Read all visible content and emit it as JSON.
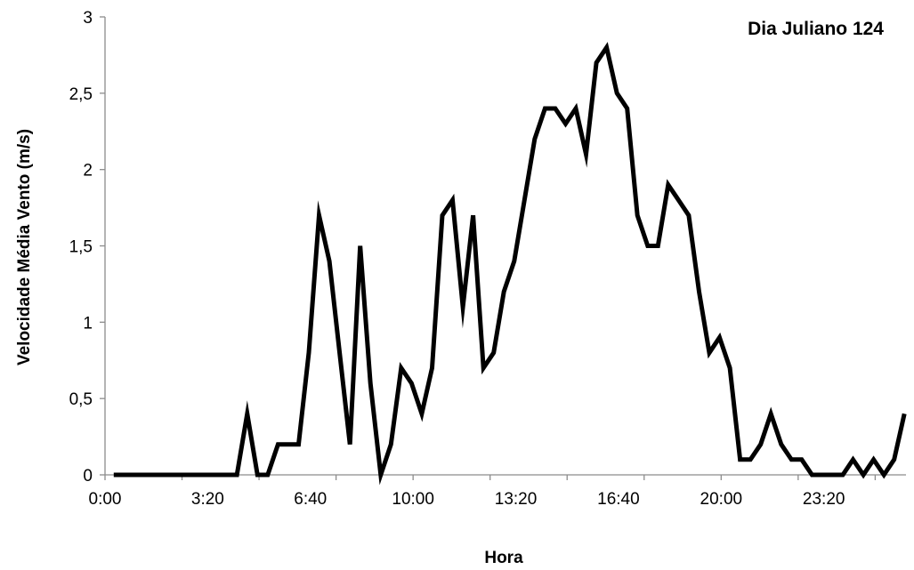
{
  "chart_data": {
    "type": "line",
    "title": "Dia Juliano 124",
    "xlabel": "Hora",
    "ylabel": "Velocidade Média Vento (m/s)",
    "x_tick_labels": [
      "0:00",
      "3:20",
      "6:40",
      "10:00",
      "13:20",
      "16:40",
      "20:00",
      "23:20"
    ],
    "y_tick_labels": [
      "0",
      "0,5",
      "1",
      "1,5",
      "2",
      "2,5",
      "3"
    ],
    "ylim": [
      0,
      3
    ],
    "xlim_minutes": [
      0,
      1430
    ],
    "x_interval_minutes": 20,
    "grid": false,
    "legend": "none",
    "line_color": "#000000",
    "series": [
      {
        "values": [
          0,
          0,
          0,
          0,
          0,
          0,
          0,
          0,
          0,
          0,
          0,
          0,
          0,
          0.4,
          0,
          0,
          0.2,
          0.2,
          0.2,
          0.8,
          1.7,
          1.4,
          0.8,
          0.2,
          1.5,
          0.6,
          0,
          0.2,
          0.7,
          0.6,
          0.4,
          0.7,
          1.7,
          1.8,
          1.1,
          1.7,
          0.7,
          0.8,
          1.2,
          1.4,
          1.8,
          2.2,
          2.4,
          2.4,
          2.3,
          2.4,
          2.1,
          2.7,
          2.8,
          2.5,
          2.4,
          1.7,
          1.5,
          1.5,
          1.9,
          1.8,
          1.7,
          1.2,
          0.8,
          0.9,
          0.7,
          0.1,
          0.1,
          0.2,
          0.4,
          0.2,
          0.1,
          0.1,
          0,
          0,
          0,
          0,
          0.1,
          0,
          0.1,
          0,
          0.1,
          0.4
        ]
      }
    ]
  }
}
